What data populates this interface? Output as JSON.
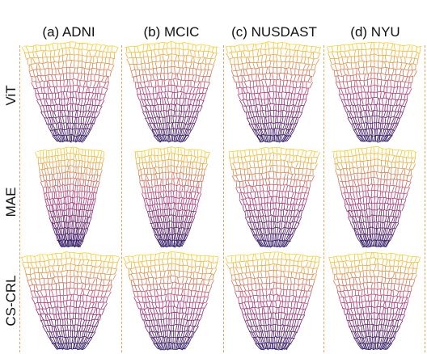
{
  "columns": [
    {
      "id": "adni",
      "title": "(a) ADNI"
    },
    {
      "id": "mcic",
      "title": "(b) MCIC"
    },
    {
      "id": "nusdast",
      "title": "(c) NUSDAST"
    },
    {
      "id": "nyu",
      "title": "(d) NYU"
    }
  ],
  "rows": [
    {
      "id": "vit",
      "label": "ViT"
    },
    {
      "id": "mae",
      "label": "MAE"
    },
    {
      "id": "cs-crl",
      "label": "CS-CRL"
    }
  ],
  "colors": {
    "bottom": "#1f0c5c",
    "middle": "#b5367a",
    "top": "#fbd02c",
    "divider": "#e8a25c"
  }
}
